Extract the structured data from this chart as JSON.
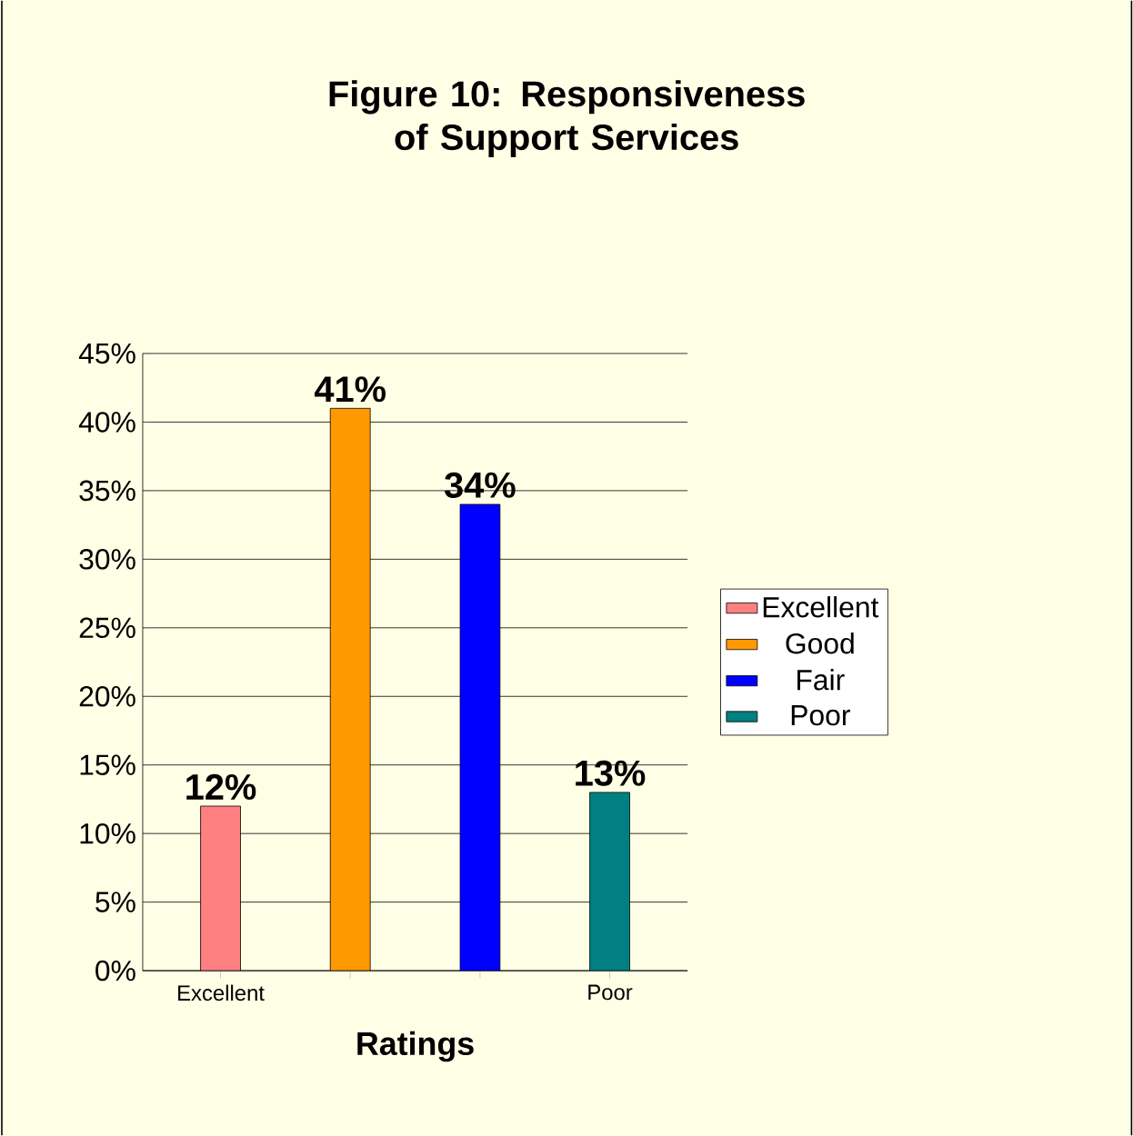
{
  "chart_data": {
    "type": "bar",
    "title": "Figure 10:  Responsiveness of Support Services",
    "xlabel": "Ratings",
    "categories": [
      "Excellent",
      null,
      null,
      "Poor"
    ],
    "series": [
      {
        "name": "Excellent",
        "color": "#ff8080",
        "values": [
          12,
          null,
          null,
          null
        ],
        "value_labels": [
          "12%",
          null,
          null,
          null
        ]
      },
      {
        "name": "Good",
        "color": "#ff9900",
        "values": [
          null,
          41,
          null,
          null
        ],
        "value_labels": [
          null,
          "41%",
          null,
          null
        ]
      },
      {
        "name": "Fair",
        "color": "#0000ff",
        "values": [
          null,
          null,
          34,
          null
        ],
        "value_labels": [
          null,
          null,
          "34%",
          null
        ]
      },
      {
        "name": "Poor",
        "color": "#008080",
        "values": [
          null,
          null,
          null,
          13
        ],
        "value_labels": [
          null,
          null,
          null,
          "13%"
        ]
      }
    ],
    "ylim": [
      0,
      45
    ],
    "yticks": [
      {
        "value": 0,
        "label": "0%"
      },
      {
        "value": 5,
        "label": "5%"
      },
      {
        "value": 10,
        "label": "10%"
      },
      {
        "value": 15,
        "label": "15%"
      },
      {
        "value": 20,
        "label": "20%"
      },
      {
        "value": 25,
        "label": "25%"
      },
      {
        "value": 30,
        "label": "30%"
      },
      {
        "value": 35,
        "label": "35%"
      },
      {
        "value": 40,
        "label": "40%"
      },
      {
        "value": 45,
        "label": "45%"
      }
    ],
    "grid": "y",
    "legend": "right"
  }
}
